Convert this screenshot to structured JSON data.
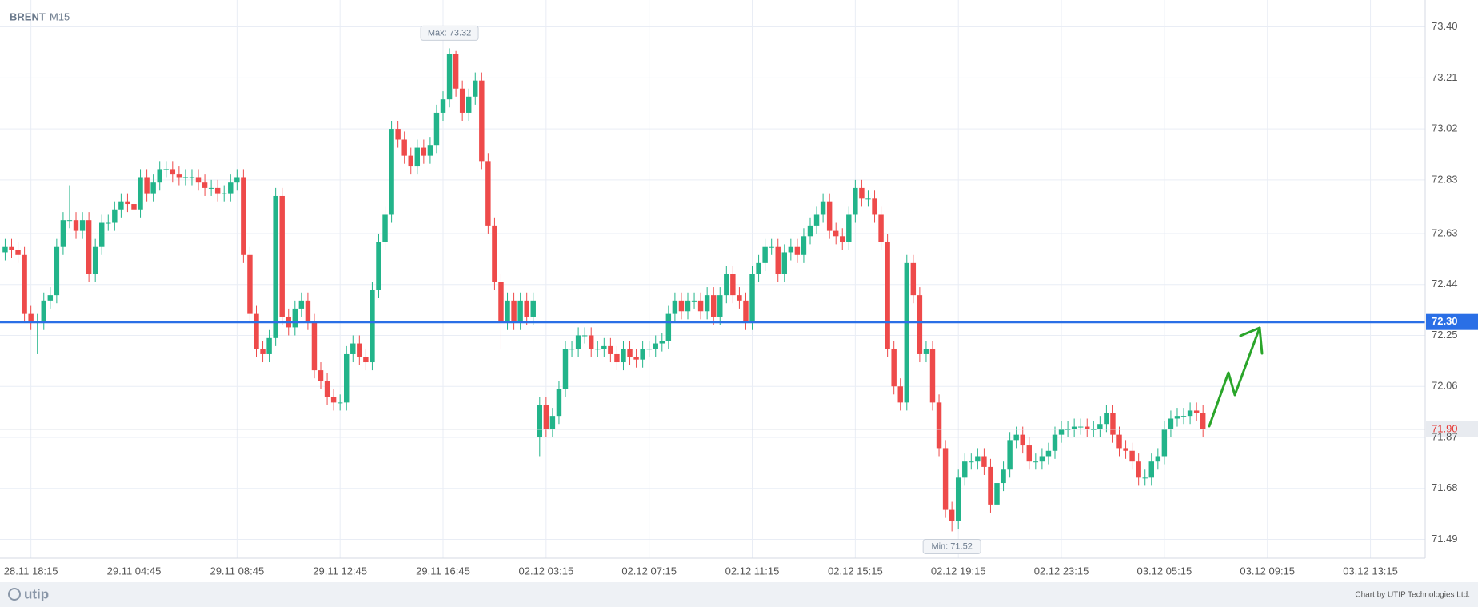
{
  "chart_data": {
    "type": "candlestick",
    "symbol": "BRENT",
    "timeframe": "M15",
    "open": [
      72.56,
      72.58,
      72.57,
      72.55,
      72.33,
      72.3,
      72.3,
      72.38,
      72.4,
      72.58,
      72.68,
      72.68,
      72.64,
      72.68,
      72.48,
      72.58,
      72.67,
      72.67,
      72.72,
      72.75,
      72.74,
      72.72,
      72.84,
      72.78,
      72.82,
      72.87,
      72.87,
      72.85,
      72.84,
      72.84,
      72.84,
      72.82,
      72.8,
      72.8,
      72.78,
      72.78,
      72.82,
      72.84,
      72.55,
      72.33,
      72.2,
      72.18,
      72.24,
      72.77,
      72.32,
      72.28,
      72.35,
      72.38,
      72.3,
      72.12,
      72.08,
      72.02,
      72.0,
      72.0,
      72.18,
      72.22,
      72.17,
      72.15,
      72.42,
      72.6,
      72.7,
      73.02,
      72.98,
      72.92,
      72.88,
      72.95,
      72.92,
      72.96,
      73.08,
      73.13,
      73.3,
      73.17,
      73.08,
      73.14,
      73.2,
      72.9,
      72.66,
      72.45,
      72.3,
      72.38,
      72.3,
      72.38,
      72.32,
      71.87,
      71.99,
      71.9,
      71.95,
      72.05,
      72.2,
      72.2,
      72.25,
      72.25,
      72.2,
      72.2,
      72.21,
      72.18,
      72.15,
      72.2,
      72.17,
      72.16,
      72.2,
      72.2,
      72.22,
      72.23,
      72.33,
      72.38,
      72.34,
      72.38,
      72.38,
      72.34,
      72.4,
      72.32,
      72.4,
      72.48,
      72.4,
      72.38,
      72.3,
      72.48,
      72.52,
      72.58,
      72.58,
      72.48,
      72.56,
      72.58,
      72.55,
      72.62,
      72.66,
      72.7,
      72.75,
      72.64,
      72.62,
      72.6,
      72.7,
      72.8,
      72.76,
      72.76,
      72.7,
      72.6,
      72.2,
      72.06,
      72.0,
      72.52,
      72.4,
      72.18,
      72.2,
      72.0,
      71.83,
      71.6,
      71.56,
      71.72,
      71.78,
      71.78,
      71.8,
      71.76,
      71.62,
      71.7,
      71.75,
      71.86,
      71.88,
      71.84,
      71.78,
      71.78,
      71.8,
      71.82,
      71.88,
      71.9,
      71.9,
      71.91,
      71.91,
      71.9,
      71.9,
      71.92,
      71.96,
      71.88,
      71.83,
      71.82,
      71.78,
      71.72,
      71.72,
      71.78,
      71.8,
      71.9,
      71.94,
      71.95,
      71.95,
      71.97,
      71.96
    ],
    "high": [
      72.61,
      72.61,
      72.6,
      72.58,
      72.36,
      72.33,
      72.41,
      72.43,
      72.61,
      72.71,
      72.81,
      72.71,
      72.71,
      72.71,
      72.61,
      72.7,
      72.7,
      72.75,
      72.78,
      72.78,
      72.77,
      72.87,
      72.87,
      72.85,
      72.9,
      72.9,
      72.9,
      72.88,
      72.87,
      72.87,
      72.87,
      72.85,
      72.83,
      72.83,
      72.81,
      72.85,
      72.87,
      72.87,
      72.58,
      72.36,
      72.23,
      72.27,
      72.8,
      72.8,
      72.35,
      72.38,
      72.41,
      72.41,
      72.33,
      72.15,
      72.11,
      72.05,
      72.03,
      72.21,
      72.25,
      72.25,
      72.2,
      72.45,
      72.63,
      72.73,
      73.05,
      73.05,
      73.01,
      72.95,
      72.98,
      72.98,
      72.99,
      73.11,
      73.16,
      73.32,
      73.31,
      73.2,
      73.17,
      73.23,
      73.23,
      72.93,
      72.69,
      72.48,
      72.41,
      72.41,
      72.41,
      72.41,
      72.41,
      72.02,
      72.02,
      71.98,
      72.08,
      72.23,
      72.23,
      72.28,
      72.28,
      72.28,
      72.23,
      72.24,
      72.24,
      72.21,
      72.23,
      72.23,
      72.2,
      72.23,
      72.23,
      72.25,
      72.26,
      72.36,
      72.41,
      72.41,
      72.41,
      72.41,
      72.41,
      72.43,
      72.43,
      72.43,
      72.51,
      72.51,
      72.43,
      72.41,
      72.51,
      72.55,
      72.61,
      72.61,
      72.61,
      72.59,
      72.61,
      72.61,
      72.65,
      72.69,
      72.73,
      72.78,
      72.78,
      72.67,
      72.65,
      72.73,
      72.83,
      72.83,
      72.79,
      72.79,
      72.73,
      72.63,
      72.23,
      72.09,
      72.55,
      72.55,
      72.43,
      72.23,
      72.23,
      72.03,
      71.86,
      71.63,
      71.75,
      71.81,
      71.81,
      71.83,
      71.83,
      71.79,
      71.73,
      71.78,
      71.89,
      71.91,
      71.91,
      71.87,
      71.81,
      71.83,
      71.85,
      71.91,
      71.93,
      71.93,
      71.94,
      71.94,
      71.94,
      71.93,
      71.95,
      71.99,
      71.99,
      71.91,
      71.86,
      71.85,
      71.81,
      71.75,
      71.81,
      71.83,
      71.93,
      71.97,
      71.98,
      71.98,
      72.0,
      72.0,
      71.99
    ],
    "low": [
      72.53,
      72.54,
      72.52,
      72.3,
      72.27,
      72.18,
      72.27,
      72.35,
      72.37,
      72.55,
      72.65,
      72.61,
      72.61,
      72.45,
      72.45,
      72.55,
      72.64,
      72.64,
      72.69,
      72.71,
      72.69,
      72.69,
      72.75,
      72.75,
      72.79,
      72.84,
      72.82,
      72.81,
      72.81,
      72.81,
      72.79,
      72.77,
      72.77,
      72.75,
      72.75,
      72.75,
      72.79,
      72.52,
      72.3,
      72.17,
      72.15,
      72.15,
      72.21,
      72.29,
      72.25,
      72.25,
      72.32,
      72.27,
      72.09,
      72.05,
      71.99,
      71.97,
      71.97,
      71.97,
      72.15,
      72.14,
      72.12,
      72.12,
      72.39,
      72.57,
      72.67,
      72.95,
      72.89,
      72.85,
      72.85,
      72.89,
      72.89,
      72.93,
      73.05,
      73.1,
      73.14,
      73.05,
      73.05,
      73.11,
      72.87,
      72.63,
      72.42,
      72.2,
      72.27,
      72.27,
      72.27,
      72.29,
      72.29,
      71.8,
      71.87,
      71.87,
      71.92,
      72.02,
      72.17,
      72.17,
      72.22,
      72.17,
      72.17,
      72.17,
      72.15,
      72.12,
      72.12,
      72.14,
      72.13,
      72.13,
      72.17,
      72.17,
      72.19,
      72.2,
      72.3,
      72.31,
      72.31,
      72.35,
      72.31,
      72.31,
      72.29,
      72.29,
      72.37,
      72.37,
      72.35,
      72.27,
      72.27,
      72.45,
      72.49,
      72.55,
      72.45,
      72.45,
      72.53,
      72.52,
      72.52,
      72.59,
      72.63,
      72.67,
      72.61,
      72.59,
      72.57,
      72.57,
      72.67,
      72.73,
      72.73,
      72.67,
      72.57,
      72.17,
      72.03,
      71.97,
      71.97,
      72.37,
      72.15,
      72.15,
      71.97,
      71.8,
      71.57,
      71.52,
      71.53,
      71.69,
      71.75,
      71.75,
      71.73,
      71.59,
      71.59,
      71.67,
      71.72,
      71.83,
      71.81,
      71.75,
      71.75,
      71.75,
      71.77,
      71.79,
      71.85,
      71.87,
      71.87,
      71.88,
      71.87,
      71.87,
      71.87,
      71.89,
      71.85,
      71.8,
      71.79,
      71.75,
      71.69,
      71.69,
      71.69,
      71.75,
      71.77,
      71.87,
      71.91,
      71.92,
      71.92,
      71.93,
      71.87
    ],
    "close": [
      72.58,
      72.57,
      72.55,
      72.33,
      72.3,
      72.3,
      72.38,
      72.4,
      72.58,
      72.68,
      72.68,
      72.64,
      72.68,
      72.48,
      72.58,
      72.67,
      72.67,
      72.72,
      72.75,
      72.74,
      72.72,
      72.84,
      72.78,
      72.82,
      72.87,
      72.87,
      72.85,
      72.84,
      72.84,
      72.84,
      72.82,
      72.8,
      72.8,
      72.78,
      72.78,
      72.82,
      72.84,
      72.55,
      72.33,
      72.2,
      72.18,
      72.24,
      72.77,
      72.32,
      72.28,
      72.35,
      72.38,
      72.3,
      72.12,
      72.08,
      72.02,
      72.0,
      72.0,
      72.18,
      72.22,
      72.17,
      72.15,
      72.42,
      72.6,
      72.7,
      73.02,
      72.98,
      72.92,
      72.88,
      72.95,
      72.92,
      72.96,
      73.08,
      73.13,
      73.3,
      73.17,
      73.08,
      73.14,
      73.2,
      72.9,
      72.66,
      72.45,
      72.3,
      72.38,
      72.3,
      72.38,
      72.32,
      72.38,
      71.99,
      71.9,
      71.95,
      72.05,
      72.2,
      72.2,
      72.25,
      72.25,
      72.2,
      72.2,
      72.21,
      72.18,
      72.15,
      72.2,
      72.17,
      72.16,
      72.2,
      72.2,
      72.22,
      72.23,
      72.33,
      72.38,
      72.34,
      72.38,
      72.38,
      72.34,
      72.4,
      72.32,
      72.4,
      72.48,
      72.4,
      72.38,
      72.3,
      72.48,
      72.52,
      72.58,
      72.58,
      72.48,
      72.56,
      72.58,
      72.55,
      72.62,
      72.66,
      72.7,
      72.75,
      72.64,
      72.62,
      72.6,
      72.7,
      72.8,
      72.76,
      72.76,
      72.7,
      72.6,
      72.2,
      72.06,
      72.0,
      72.52,
      72.4,
      72.18,
      72.2,
      72.0,
      71.83,
      71.6,
      71.56,
      71.72,
      71.78,
      71.78,
      71.8,
      71.76,
      71.62,
      71.7,
      71.75,
      71.86,
      71.88,
      71.84,
      71.78,
      71.78,
      71.8,
      71.82,
      71.88,
      71.9,
      71.9,
      71.91,
      71.91,
      71.9,
      71.9,
      71.92,
      71.96,
      71.88,
      71.83,
      71.82,
      71.78,
      71.72,
      71.72,
      71.78,
      71.8,
      71.9,
      71.94,
      71.95,
      71.95,
      71.97,
      71.96,
      71.9
    ],
    "up_color": "#22b48a",
    "down_color": "#ee4a4a",
    "ylim": [
      71.42,
      73.5
    ],
    "yticks": [
      {
        "value": 73.4,
        "label": "73.40"
      },
      73.21,
      73.02,
      72.83,
      72.63,
      72.44,
      72.25,
      72.06,
      71.87,
      71.68,
      71.49
    ],
    "xlim": [
      -0.8,
      220.5
    ],
    "xticks": [
      {
        "value": 4,
        "label": "28.11 18:15"
      },
      {
        "value": 20,
        "label": "29.11 04:45"
      },
      {
        "value": 36,
        "label": "29.11 08:45"
      },
      {
        "value": 52,
        "label": "29.11 12:45"
      },
      {
        "value": 68,
        "label": "29.11 16:45"
      },
      {
        "value": 84,
        "label": "02.12 03:15"
      },
      {
        "value": 100,
        "label": "02.12 07:15"
      },
      {
        "value": 116,
        "label": "02.12 11:15"
      },
      {
        "value": 132,
        "label": "02.12 15:15"
      },
      {
        "value": 148,
        "label": "02.12 19:15"
      },
      {
        "value": 164,
        "label": "02.12 23:15"
      },
      {
        "value": 180,
        "label": "03.12 05:15"
      },
      {
        "value": 196,
        "label": "03.12 09:15"
      },
      {
        "value": 212,
        "label": "03.12 13:15"
      }
    ],
    "grid": true,
    "level": {
      "value": 72.3,
      "label": "72.30",
      "color": "#2a6fe6"
    },
    "last_price": {
      "value": 71.9,
      "label": "71.90",
      "color": "#e53935"
    },
    "max_label": "Max: 73.32",
    "min_label": "Min: 71.52"
  },
  "footer": {
    "logo": "utip",
    "credit": "Chart by UTIP Technologies Ltd."
  }
}
